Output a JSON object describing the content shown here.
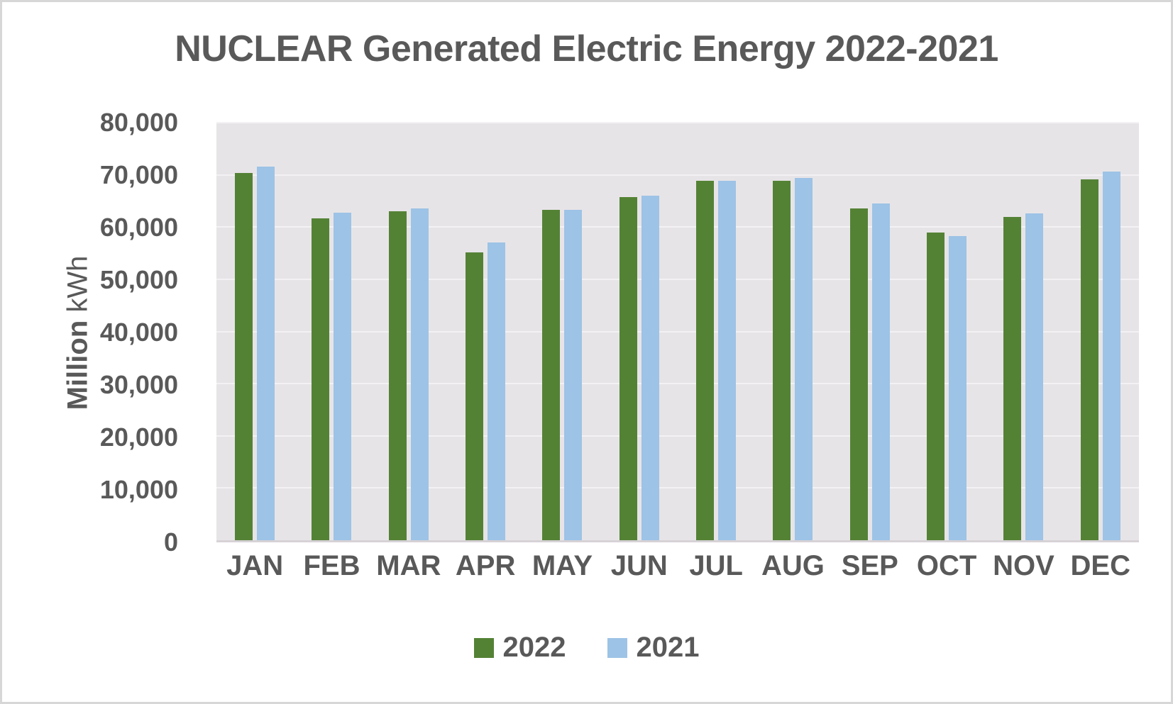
{
  "chart_data": {
    "type": "bar",
    "title": "NUCLEAR Generated Electric Energy 2022-2021",
    "ylabel_bold": "Million",
    "ylabel_unit": "kWh",
    "xlabel": "",
    "ylim": [
      0,
      80000
    ],
    "ytick_step": 10000,
    "ytick_labels": [
      "0",
      "10,000",
      "20,000",
      "30,000",
      "40,000",
      "50,000",
      "60,000",
      "70,000",
      "80,000"
    ],
    "grid": true,
    "legend_position": "bottom",
    "categories": [
      "JAN",
      "FEB",
      "MAR",
      "APR",
      "MAY",
      "JUN",
      "JUL",
      "AUG",
      "SEP",
      "OCT",
      "NOV",
      "DEC"
    ],
    "series": [
      {
        "name": "2022",
        "color": "#548235",
        "values": [
          70400,
          61600,
          63000,
          55200,
          63300,
          65700,
          68800,
          68900,
          63600,
          58900,
          61900,
          69200
        ]
      },
      {
        "name": "2021",
        "color": "#9DC3E6",
        "values": [
          71600,
          62800,
          63600,
          57000,
          63300,
          66000,
          68800,
          69400,
          64500,
          58300,
          62600,
          70600
        ]
      }
    ],
    "colors": {
      "text": "#595959",
      "plot_background": "#E7E4E7",
      "gridline": "#F3F1F3",
      "axis_line": "#D6D2D6",
      "page_border": "#D7D7D7"
    }
  }
}
